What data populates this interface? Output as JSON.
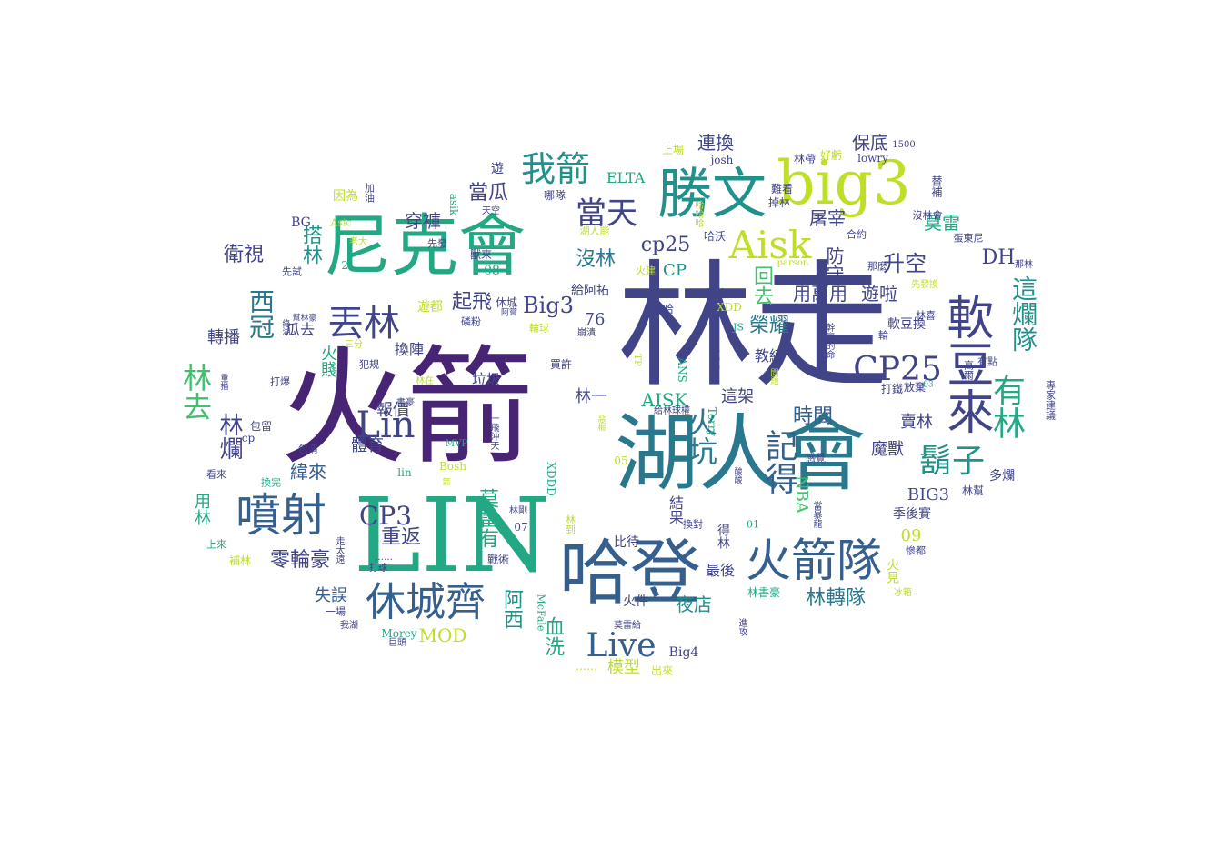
{
  "palette": {
    "c0": "#440154",
    "c1": "#482475",
    "c2": "#414487",
    "c3": "#355f8d",
    "c4": "#2a788e",
    "c5": "#21918c",
    "c6": "#22a884",
    "c7": "#44bf70",
    "c8": "#7ad151",
    "c9": "#bddf26",
    "c10": "#fde725"
  },
  "words": [
    {
      "text": "林走",
      "c": "c2"
    },
    {
      "text": "火箭",
      "c": "c1"
    },
    {
      "text": "LIN",
      "c": "c6"
    },
    {
      "text": "湖人會",
      "c": "c4"
    },
    {
      "text": "哈登",
      "c": "c3"
    },
    {
      "text": "尼克會",
      "c": "c6"
    },
    {
      "text": "big3",
      "c": "c9"
    },
    {
      "text": "勝文",
      "c": "c5"
    },
    {
      "text": "軟豆來",
      "c": "c2"
    },
    {
      "text": "噴射",
      "c": "c3"
    },
    {
      "text": "火箭隊",
      "c": "c3"
    },
    {
      "text": "休城齊",
      "c": "c3"
    },
    {
      "text": "Aisk",
      "c": "c9"
    },
    {
      "text": "Lin",
      "c": "c2"
    },
    {
      "text": "丟林",
      "c": "c2"
    },
    {
      "text": "我箭",
      "c": "c5"
    },
    {
      "text": "有林",
      "c": "c6"
    },
    {
      "text": "這爛隊",
      "c": "c5"
    },
    {
      "text": "CP25",
      "c": "c2"
    },
    {
      "text": "鬍子",
      "c": "c5"
    },
    {
      "text": "記得",
      "c": "c3"
    },
    {
      "text": "Live",
      "c": "c3"
    },
    {
      "text": "CP3",
      "c": "c2"
    },
    {
      "text": "當天",
      "c": "c2"
    },
    {
      "text": "火坑",
      "c": "c4"
    },
    {
      "text": "林去",
      "c": "c7"
    },
    {
      "text": "西冠",
      "c": "c4"
    },
    {
      "text": "莫雷有",
      "c": "c6"
    },
    {
      "text": "林爛",
      "c": "c2"
    },
    {
      "text": "重返",
      "c": "c2"
    },
    {
      "text": "cp25",
      "c": "c2"
    },
    {
      "text": "林轉隊",
      "c": "c4"
    },
    {
      "text": "升空",
      "c": "c2"
    },
    {
      "text": "衛視",
      "c": "c2"
    },
    {
      "text": "搭林",
      "c": "c5"
    },
    {
      "text": "起飛",
      "c": "c2"
    },
    {
      "text": "沒林",
      "c": "c4"
    },
    {
      "text": "Big3",
      "c": "c2"
    },
    {
      "text": "穿褲",
      "c": "c2"
    },
    {
      "text": "當瓜",
      "c": "c2"
    },
    {
      "text": "零輪豪",
      "c": "c2"
    },
    {
      "text": "時間",
      "c": "c3"
    },
    {
      "text": "屠宰",
      "c": "c2"
    },
    {
      "text": "莫雷",
      "c": "c6"
    },
    {
      "text": "DH",
      "c": "c2"
    },
    {
      "text": "榮耀",
      "c": "c4"
    },
    {
      "text": "用萬用",
      "c": "c2"
    },
    {
      "text": "遊啦",
      "c": "c2"
    },
    {
      "text": "回去",
      "c": "c7"
    },
    {
      "text": "防守",
      "c": "c2"
    },
    {
      "text": "連換",
      "c": "c2"
    },
    {
      "text": "保底",
      "c": "c2"
    },
    {
      "text": "夜店",
      "c": "c5"
    },
    {
      "text": "阿西",
      "c": "c5"
    },
    {
      "text": "血洗",
      "c": "c6"
    },
    {
      "text": "MOD",
      "c": "c9"
    },
    {
      "text": "模型",
      "c": "c9"
    },
    {
      "text": "BIG3",
      "c": "c2"
    },
    {
      "text": "AISK",
      "c": "c6"
    },
    {
      "text": "體育",
      "c": "c2"
    },
    {
      "text": "報價",
      "c": "c2"
    },
    {
      "text": "緯來",
      "c": "c3"
    },
    {
      "text": "失誤",
      "c": "c3"
    },
    {
      "text": "用林",
      "c": "c6"
    },
    {
      "text": "瓜去",
      "c": "c2"
    },
    {
      "text": "轉播",
      "c": "c2"
    },
    {
      "text": "火賤",
      "c": "c6"
    },
    {
      "text": "NBA",
      "c": "c7"
    },
    {
      "text": "魔獸",
      "c": "c2"
    },
    {
      "text": "賣林",
      "c": "c2"
    },
    {
      "text": "這架",
      "c": "c2"
    },
    {
      "text": "cp25",
      "c": "c2"
    },
    {
      "text": "CP",
      "c": "c5"
    },
    {
      "text": "76",
      "c": "c2"
    },
    {
      "text": "換陣",
      "c": "c2"
    },
    {
      "text": "垃圾",
      "c": "c2"
    },
    {
      "text": "林一",
      "c": "c2"
    },
    {
      "text": "教練",
      "c": "c2"
    },
    {
      "text": "ELTA",
      "c": "c6"
    },
    {
      "text": "09",
      "c": "c9"
    },
    {
      "text": "季後賽",
      "c": "c2"
    },
    {
      "text": "多爛",
      "c": "c2"
    },
    {
      "text": "火見",
      "c": "c9"
    },
    {
      "text": "最後",
      "c": "c2"
    },
    {
      "text": "結果",
      "c": "c2"
    },
    {
      "text": "Big4",
      "c": "c2"
    },
    {
      "text": "火件",
      "c": "c2"
    },
    {
      "text": "比待",
      "c": "c2"
    },
    {
      "text": "得林",
      "c": "c2"
    },
    {
      "text": "戰術",
      "c": "c2"
    },
    {
      "text": "林書豪",
      "c": "c6"
    },
    {
      "text": "出來",
      "c": "c9"
    },
    {
      "text": "休城",
      "c": "c2"
    },
    {
      "text": "遊都",
      "c": "c9"
    },
    {
      "text": "給阿拓",
      "c": "c2"
    },
    {
      "text": "蛋痛尼",
      "c": "c2"
    },
    {
      "text": "lowry",
      "c": "c2"
    },
    {
      "text": "josh",
      "c": "c2"
    },
    {
      "text": "1500",
      "c": "c2"
    },
    {
      "text": "好虧",
      "c": "c9"
    },
    {
      "text": "林帶",
      "c": "c2"
    },
    {
      "text": "上場",
      "c": "c9"
    },
    {
      "text": "遊",
      "c": "c2"
    },
    {
      "text": "哪隊",
      "c": "c2"
    },
    {
      "text": "天空",
      "c": "c2"
    },
    {
      "text": "因為",
      "c": "c9"
    },
    {
      "text": "加油",
      "c": "c2"
    },
    {
      "text": "asik",
      "c": "c6"
    },
    {
      "text": "BG",
      "c": "c2"
    },
    {
      "text": "Asic",
      "c": "c9"
    },
    {
      "text": "老大",
      "c": "c9"
    },
    {
      "text": "先發",
      "c": "c2"
    },
    {
      "text": "21",
      "c": "c6"
    },
    {
      "text": "先試",
      "c": "c2"
    },
    {
      "text": "哈沃",
      "c": "c2"
    },
    {
      "text": "難看",
      "c": "c2"
    },
    {
      "text": "掉林",
      "c": "c2"
    },
    {
      "text": "替補",
      "c": "c2"
    },
    {
      "text": "沒林會",
      "c": "c2"
    },
    {
      "text": "蛋東尼",
      "c": "c2"
    },
    {
      "text": "合約",
      "c": "c2"
    },
    {
      "text": "那麼",
      "c": "c2"
    },
    {
      "text": "那林",
      "c": "c2"
    },
    {
      "text": "先發換",
      "c": "c9"
    },
    {
      "text": "parson",
      "c": "c9"
    },
    {
      "text": "林喜",
      "c": "c2"
    },
    {
      "text": "08",
      "c": "c6"
    },
    {
      "text": "獸來",
      "c": "c2"
    },
    {
      "text": "火建",
      "c": "c9"
    },
    {
      "text": "雙哈",
      "c": "c2"
    },
    {
      "text": "XDD",
      "c": "c9"
    },
    {
      "text": "JS",
      "c": "c6"
    },
    {
      "text": "軟豆換",
      "c": "c2"
    },
    {
      "text": "一輪",
      "c": "c2"
    },
    {
      "text": "幹贏的命",
      "c": "c2"
    },
    {
      "text": "打鐵",
      "c": "c2"
    },
    {
      "text": "放棄",
      "c": "c2"
    },
    {
      "text": "03",
      "c": "c6"
    },
    {
      "text": "有點",
      "c": "c2"
    },
    {
      "text": "高爾",
      "c": "c2"
    },
    {
      "text": "專家建議",
      "c": "c2"
    },
    {
      "text": "林幫",
      "c": "c2"
    },
    {
      "text": "感覺",
      "c": "c2"
    },
    {
      "text": "Terry",
      "c": "c6"
    },
    {
      "text": "ANS",
      "c": "c6"
    },
    {
      "text": "AGG",
      "c": "c2"
    },
    {
      "text": "XDDD",
      "c": "c6"
    },
    {
      "text": "TP",
      "c": "c9"
    },
    {
      "text": "給林球權",
      "c": "c2"
    },
    {
      "text": "換對",
      "c": "c2"
    },
    {
      "text": "當暴龍",
      "c": "c2"
    },
    {
      "text": "01",
      "c": "c6"
    },
    {
      "text": "MVP",
      "c": "c6"
    },
    {
      "text": "Bosh",
      "c": "c9"
    },
    {
      "text": "lin",
      "c": "c6"
    },
    {
      "text": "05",
      "c": "c9"
    },
    {
      "text": "07",
      "c": "c2"
    },
    {
      "text": "林剛",
      "c": "c2"
    },
    {
      "text": "林到",
      "c": "c9"
    },
    {
      "text": "McFale",
      "c": "c6"
    },
    {
      "text": "莫雷給",
      "c": "c2"
    },
    {
      "text": "進攻",
      "c": "c2"
    },
    {
      "text": "冰箱",
      "c": "c9"
    },
    {
      "text": "慘都",
      "c": "c2"
    },
    {
      "text": "磷粉",
      "c": "c2"
    },
    {
      "text": "輪球",
      "c": "c9"
    },
    {
      "text": "崩潰",
      "c": "c2"
    },
    {
      "text": "阿嘗",
      "c": "c2"
    },
    {
      "text": "買許",
      "c": "c2"
    },
    {
      "text": "犯規",
      "c": "c2"
    },
    {
      "text": "三分",
      "c": "c9"
    },
    {
      "text": "打爆",
      "c": "c2"
    },
    {
      "text": "重播",
      "c": "c2"
    },
    {
      "text": "綠湖",
      "c": "c2"
    },
    {
      "text": "幫林豪",
      "c": "c2"
    },
    {
      "text": "包留",
      "c": "c2"
    },
    {
      "text": "cp",
      "c": "c2"
    },
    {
      "text": "看來",
      "c": "c2"
    },
    {
      "text": "換完",
      "c": "c6"
    },
    {
      "text": "包清",
      "c": "c2"
    },
    {
      "text": "書豪",
      "c": "c2"
    },
    {
      "text": "林在",
      "c": "c9"
    },
    {
      "text": "上來",
      "c": "c6"
    },
    {
      "text": "補林",
      "c": "c9"
    },
    {
      "text": "走太遠",
      "c": "c2"
    },
    {
      "text": "一場",
      "c": "c2"
    },
    {
      "text": "我湖",
      "c": "c2"
    },
    {
      "text": "Morey",
      "c": "c6"
    },
    {
      "text": "巨頭",
      "c": "c2"
    },
    {
      "text": "打球",
      "c": "c2"
    },
    {
      "text": "……",
      "c": "c2"
    },
    {
      "text": "一飛沖天",
      "c": "c2"
    },
    {
      "text": "箭",
      "c": "c9"
    },
    {
      "text": "……",
      "c": "c9"
    },
    {
      "text": "湖人能",
      "c": "c9"
    },
    {
      "text": "哈哈哈",
      "c": "c9"
    },
    {
      "text": "酸酸",
      "c": "c2"
    },
    {
      "text": "間題",
      "c": "c9"
    },
    {
      "text": "惡棍",
      "c": "c9"
    }
  ]
}
